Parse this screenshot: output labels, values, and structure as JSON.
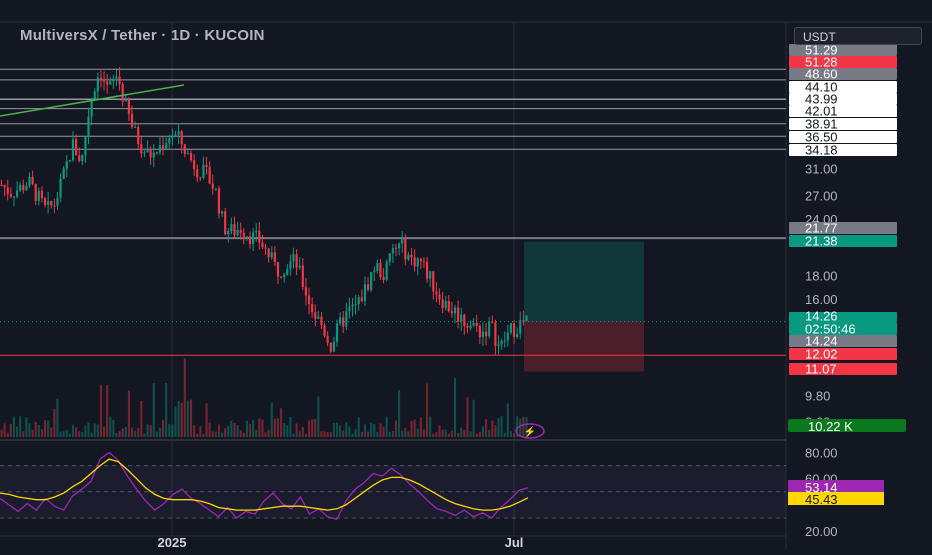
{
  "header": {
    "title": "MultiversX / Tether · 1D · KUCOIN",
    "currency_button": "USDT"
  },
  "colors": {
    "background": "#131722",
    "up": "#089981",
    "down": "#f23645",
    "rsi_line": "#9c27b0",
    "rsi_ma": "#ffd700",
    "hline": "#9598a1",
    "support_line": "#f23645",
    "trend_line": "#4caf50"
  },
  "chart_data": [
    {
      "type": "candlestick",
      "x_ticks": [
        "2025",
        "Jul"
      ],
      "price_axis_ticks": [
        "31.00",
        "27.00",
        "24.00",
        "18.00",
        "16.00",
        "9.80",
        "8.60"
      ],
      "price_axis_scale": "log",
      "ylim": [
        7.9,
        58
      ],
      "horizontal_levels": [
        51.29,
        48.6,
        44.1,
        43.99,
        42.01,
        38.91,
        36.5,
        34.18,
        21.77,
        12.02
      ],
      "price_labels": [
        {
          "text": "51.29",
          "style": "grey"
        },
        {
          "text": "51.28",
          "style": "red"
        },
        {
          "text": "48.60",
          "style": "grey"
        },
        {
          "text": "44.10",
          "style": "white"
        },
        {
          "text": "43.99",
          "style": "white"
        },
        {
          "text": "42.01",
          "style": "white"
        },
        {
          "text": "38.91",
          "style": "white"
        },
        {
          "text": "36.50",
          "style": "white"
        },
        {
          "text": "34.18",
          "style": "white"
        },
        {
          "text": "21.77",
          "style": "grey"
        },
        {
          "text": "21.38",
          "style": "green"
        },
        {
          "text": "14.26",
          "style": "green"
        },
        {
          "text": "02:50:46",
          "style": "green"
        },
        {
          "text": "14.24",
          "style": "grey"
        },
        {
          "text": "12.02",
          "style": "red"
        },
        {
          "text": "11.07",
          "style": "red"
        }
      ],
      "position_tool": {
        "entry": 14.26,
        "target": 21.38,
        "stop": 11.07
      },
      "volume_label": "10.22 K",
      "last_price": 14.26,
      "close_path": [
        28.5,
        27.5,
        28,
        29,
        27,
        25,
        26,
        30,
        35,
        32,
        44,
        51,
        46,
        50,
        42,
        37,
        34,
        33,
        35,
        37,
        36,
        33,
        31,
        30,
        28,
        23,
        22.5,
        23,
        22,
        21.5,
        20,
        18.5,
        19,
        19.5,
        17,
        15,
        14,
        12.6,
        14,
        15,
        15.5,
        17,
        19,
        18,
        20.5,
        21,
        19.5,
        19.5,
        18,
        16.5,
        15.5,
        15,
        14.3,
        14,
        13.5,
        14,
        12.4,
        13.5,
        14,
        14.26
      ]
    },
    {
      "type": "line",
      "indicator": "RSI",
      "axis_ticks": [
        "80.00",
        "60.00",
        "20.00"
      ],
      "ylim": [
        17,
        85
      ],
      "bands": [
        70,
        50,
        30
      ],
      "rsi_label": "53.14",
      "ma_label": "45.43",
      "rsi_path": [
        45,
        40,
        35,
        41,
        36,
        45,
        39,
        36,
        47,
        52,
        58,
        75,
        80,
        74,
        62,
        52,
        43,
        36,
        41,
        48,
        52,
        45,
        41,
        36,
        31,
        38,
        30,
        35,
        33,
        43,
        49,
        41,
        37,
        46,
        33,
        37,
        31,
        29,
        43,
        52,
        57,
        64,
        62,
        68,
        63,
        56,
        50,
        43,
        37,
        35,
        32,
        36,
        31,
        34,
        30,
        38,
        44,
        51,
        53.14
      ],
      "ma_path": [
        49,
        48,
        46,
        45,
        44,
        44,
        46,
        49,
        54,
        58,
        64,
        70,
        75,
        73,
        67,
        60,
        53,
        48,
        45,
        44,
        44,
        44,
        43,
        41,
        38,
        37,
        36,
        36,
        36,
        37,
        38,
        39,
        39,
        39,
        38,
        37,
        36,
        37,
        40,
        45,
        50,
        55,
        59,
        61,
        61,
        59,
        56,
        52,
        48,
        44,
        41,
        39,
        37,
        36,
        36,
        37,
        39,
        42,
        45.43
      ]
    }
  ]
}
